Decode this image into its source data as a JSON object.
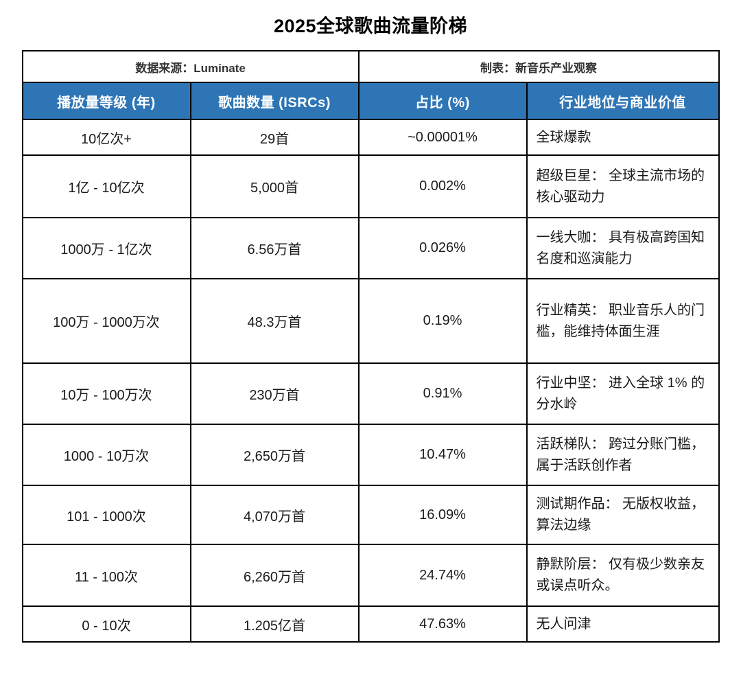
{
  "page": {
    "title": "2025全球歌曲流量阶梯"
  },
  "colors": {
    "header_bg": "#2e75b6",
    "header_text": "#ffffff",
    "border": "#000000",
    "body_text": "#1a1a1a",
    "meta_text": "#333333"
  },
  "table": {
    "meta": {
      "source": "数据来源：Luminate",
      "credit": "制表：新音乐产业观察"
    },
    "columns": [
      "播放量等级 (年)",
      "歌曲数量 (ISRCs)",
      "占比 (%)",
      "行业地位与商业价值"
    ],
    "rows": [
      {
        "tier": "10亿次+",
        "songs": "29首",
        "share": "~0.00001%",
        "status": "全球爆款"
      },
      {
        "tier": "1亿 - 10亿次",
        "songs": "5,000首",
        "share": "0.002%",
        "status": "超级巨星： 全球主流市场的核心驱动力"
      },
      {
        "tier": "1000万 - 1亿次",
        "songs": "6.56万首",
        "share": "0.026%",
        "status": "一线大咖： 具有极高跨国知名度和巡演能力"
      },
      {
        "tier": "100万 - 1000万次",
        "songs": "48.3万首",
        "share": "0.19%",
        "status": "行业精英： 职业音乐人的门槛，能维持体面生涯"
      },
      {
        "tier": "10万 - 100万次",
        "songs": "230万首",
        "share": "0.91%",
        "status": "行业中坚： 进入全球 1% 的分水岭"
      },
      {
        "tier": "1000 - 10万次",
        "songs": "2,650万首",
        "share": "10.47%",
        "status": "活跃梯队： 跨过分账门槛，属于活跃创作者"
      },
      {
        "tier": "101 - 1000次",
        "songs": "4,070万首",
        "share": "16.09%",
        "status": "测试期作品： 无版权收益，算法边缘"
      },
      {
        "tier": "11 - 100次",
        "songs": "6,260万首",
        "share": "24.74%",
        "status": "静默阶层： 仅有极少数亲友或误点听众。"
      },
      {
        "tier": "0 - 10次",
        "songs": "1.205亿首",
        "share": "47.63%",
        "status": "无人问津"
      }
    ]
  }
}
